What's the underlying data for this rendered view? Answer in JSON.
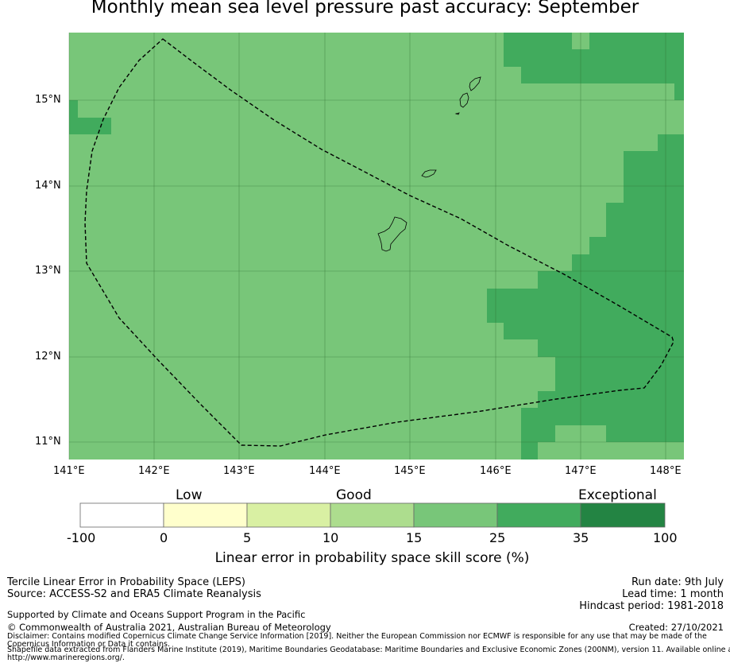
{
  "title": "Monthly mean sea level pressure past accuracy: September",
  "map": {
    "x_ticks": [
      "141°E",
      "142°E",
      "143°E",
      "144°E",
      "145°E",
      "146°E",
      "147°E",
      "148°E"
    ],
    "y_ticks": [
      "15°N",
      "14°N",
      "13°N",
      "12°N",
      "11°N"
    ],
    "colors": {
      "class_15_25": "#78c679",
      "class_25_35": "#41ab5d",
      "grid": "#2e6b2e"
    }
  },
  "colorbar": {
    "categories": [
      "Low",
      "Good",
      "Exceptional"
    ],
    "ticks": [
      "-100",
      "0",
      "5",
      "10",
      "15",
      "25",
      "35",
      "100"
    ],
    "colors": [
      "#ffffff",
      "#ffffcc",
      "#d9f0a3",
      "#addd8e",
      "#78c679",
      "#41ab5d",
      "#238443"
    ],
    "label": "Linear error in probability space skill score (%)"
  },
  "footer": {
    "left_line1": "Tercile Linear Error in Probability Space (LEPS)",
    "left_line2": "Source: ACCESS-S2 and ERA5 Climate Reanalysis",
    "supported": "Supported by Climate and Oceans Support Program in the Pacific",
    "copyright": "© Commonwealth of Australia 2021, Australian Bureau of Meteorology",
    "disclaimer1": "Disclaimer: Contains modified Copernicus Climate Change Service Information [2019]. Neither the European Commission nor ECMWF is responsible for any use that may be made of the",
    "disclaimer2": "Copernicus Information or Data it contains.",
    "disclaimer3": "Shapefile data extracted from Flanders Marine Institute (2019), Maritime Boundaries Geodatabase: Maritime Boundaries and Exclusive Economic Zones (200NM), version 11. Available online at",
    "disclaimer4": "http://www.marineregions.org/.",
    "run_date": "Run date: 9th July",
    "lead_time": "Lead time: 1 month",
    "hindcast": "Hindcast period: 1981-2018",
    "created": "Created: 27/10/2021"
  }
}
